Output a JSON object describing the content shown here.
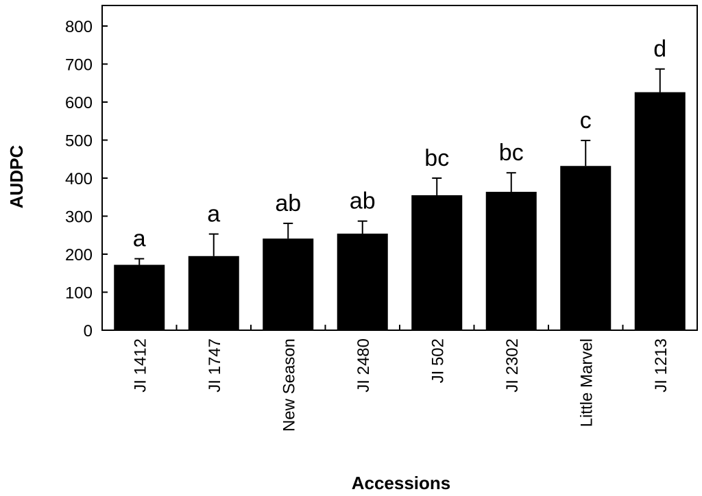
{
  "chart_data": {
    "type": "bar",
    "title": "",
    "xlabel": "Accessions",
    "ylabel": "AUDPC",
    "ylim": [
      0,
      800
    ],
    "yticks": [
      0,
      100,
      200,
      300,
      400,
      500,
      600,
      700,
      800
    ],
    "grid": false,
    "legend": "none",
    "bar_color": "#000000",
    "categories": [
      "JI 1412",
      "JI 1747",
      "New Season",
      "JI 2480",
      "JI 502",
      "JI 2302",
      "Little Marvel",
      "JI 1213"
    ],
    "values": [
      172,
      195,
      241,
      254,
      355,
      364,
      432,
      626
    ],
    "error_upper": [
      188,
      253,
      281,
      287,
      400,
      414,
      499,
      687
    ],
    "significance": [
      "a",
      "a",
      "ab",
      "ab",
      "bc",
      "bc",
      "c",
      "d"
    ]
  }
}
